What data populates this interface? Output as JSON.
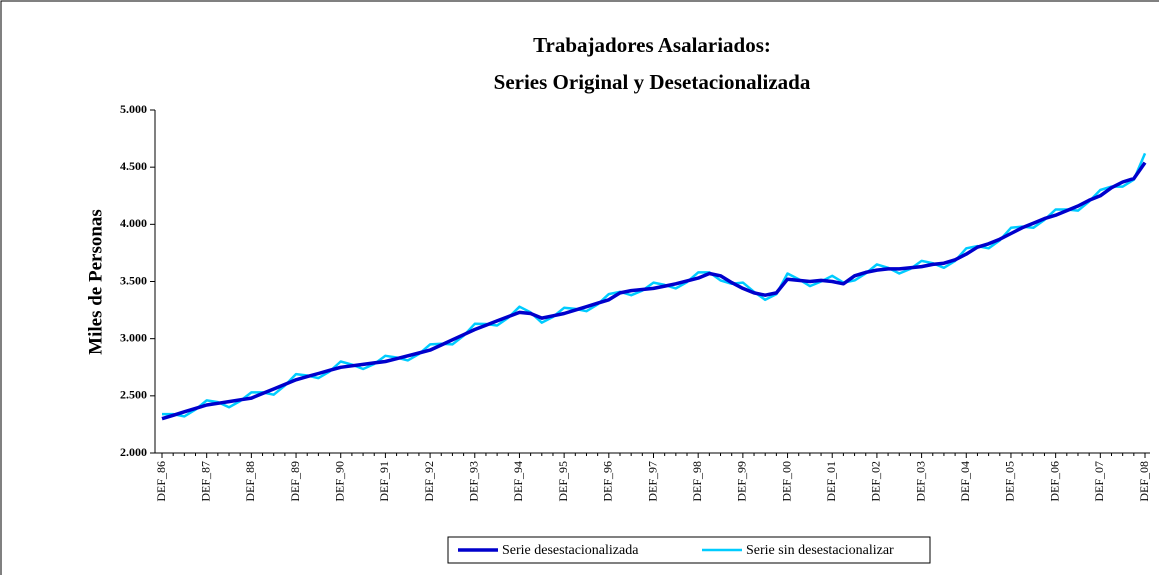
{
  "chart_data": {
    "type": "line",
    "title": "Trabajadores Asalariados:",
    "subtitle": "Series Original y Desetacionalizada",
    "y_label": "Miles de Personas",
    "categories": [
      "DEF_86",
      null,
      null,
      null,
      "DEF_87",
      null,
      null,
      null,
      "DEF_88",
      null,
      null,
      null,
      "DEF_89",
      null,
      null,
      null,
      "DEF_90",
      null,
      null,
      null,
      "DEF_91",
      null,
      null,
      null,
      "DEF_92",
      null,
      null,
      null,
      "DEF_93",
      null,
      null,
      null,
      "DEF_94",
      null,
      null,
      null,
      "DEF_95",
      null,
      null,
      null,
      "DEF_96",
      null,
      null,
      null,
      "DEF_97",
      null,
      null,
      null,
      "DEF_98",
      null,
      null,
      null,
      "DEF_99",
      null,
      null,
      null,
      "DEF_00",
      null,
      null,
      null,
      "DEF_01",
      null,
      null,
      null,
      "DEF_02",
      null,
      null,
      null,
      "DEF_03",
      null,
      null,
      null,
      "DEF_04",
      null,
      null,
      null,
      "DEF_05",
      null,
      null,
      null,
      "DEF_06",
      null,
      null,
      null,
      "DEF_07",
      null,
      null,
      null,
      "DEF_08"
    ],
    "series": [
      {
        "name": "Serie desestacionalizada",
        "color": "#0000cc",
        "values": [
          2300,
          2330,
          2360,
          2390,
          2420,
          2435,
          2450,
          2465,
          2480,
          2520,
          2560,
          2600,
          2640,
          2668,
          2695,
          2723,
          2750,
          2763,
          2775,
          2788,
          2800,
          2825,
          2850,
          2875,
          2900,
          2945,
          2990,
          3035,
          3080,
          3118,
          3155,
          3193,
          3230,
          3220,
          3180,
          3200,
          3220,
          3250,
          3280,
          3310,
          3340,
          3400,
          3420,
          3430,
          3440,
          3460,
          3480,
          3505,
          3530,
          3570,
          3550,
          3490,
          3440,
          3400,
          3380,
          3400,
          3520,
          3510,
          3500,
          3510,
          3500,
          3480,
          3550,
          3580,
          3600,
          3610,
          3610,
          3620,
          3630,
          3650,
          3660,
          3690,
          3740,
          3800,
          3830,
          3870,
          3920,
          3970,
          4010,
          4050,
          4080,
          4120,
          4160,
          4210,
          4250,
          4320,
          4370,
          4400,
          4540
        ]
      },
      {
        "name": "Serie sin desestacionalizar",
        "color": "#00ccff",
        "values": [
          2340,
          2340,
          2320,
          2380,
          2460,
          2445,
          2400,
          2455,
          2530,
          2530,
          2510,
          2590,
          2690,
          2678,
          2655,
          2713,
          2800,
          2773,
          2735,
          2778,
          2850,
          2835,
          2810,
          2865,
          2950,
          2955,
          2950,
          3025,
          3130,
          3128,
          3115,
          3183,
          3280,
          3230,
          3140,
          3190,
          3270,
          3260,
          3240,
          3300,
          3390,
          3410,
          3380,
          3420,
          3490,
          3470,
          3440,
          3495,
          3580,
          3580,
          3510,
          3480,
          3490,
          3410,
          3340,
          3390,
          3570,
          3520,
          3460,
          3500,
          3550,
          3490,
          3510,
          3570,
          3650,
          3620,
          3570,
          3610,
          3680,
          3660,
          3620,
          3680,
          3790,
          3810,
          3790,
          3860,
          3970,
          3980,
          3970,
          4040,
          4130,
          4130,
          4120,
          4200,
          4300,
          4330,
          4330,
          4390,
          4620
        ]
      }
    ],
    "ylim": [
      2000,
      5000
    ],
    "yticks": [
      {
        "value": 2000,
        "label": "2.000"
      },
      {
        "value": 2500,
        "label": "2.500"
      },
      {
        "value": 3000,
        "label": "3.000"
      },
      {
        "value": 3500,
        "label": "3.500"
      },
      {
        "value": 4000,
        "label": "4.000"
      },
      {
        "value": 4500,
        "label": "4.500"
      },
      {
        "value": 5000,
        "label": "5.000"
      }
    ],
    "legend": "bottom"
  }
}
